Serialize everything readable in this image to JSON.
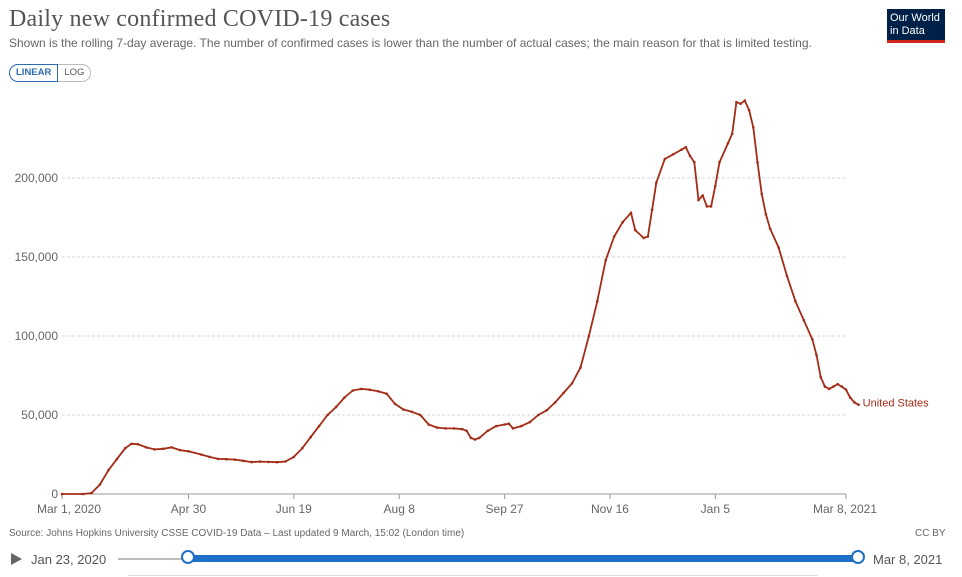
{
  "header": {
    "title": "Daily new confirmed COVID-19 cases",
    "subtitle": "Shown is the rolling 7-day average. The number of confirmed cases is lower than the number of actual cases; the main reason for that is limited testing.",
    "logo_line1": "Our World",
    "logo_line2": "in Data"
  },
  "scale_toggle": {
    "linear": "LINEAR",
    "log": "LOG",
    "selected": "LINEAR"
  },
  "footer": {
    "source": "Source: Johns Hopkins University CSSE COVID-19 Data – Last updated 9 March, 15:02 (London time)",
    "license": "CC BY"
  },
  "timeline": {
    "start": "Jan 23, 2020",
    "end": "Mar 8, 2021"
  },
  "colors": {
    "line": "#a32c17",
    "accent": "#1f6fc6",
    "logo_bg": "#002147",
    "logo_bar": "#ce261e"
  },
  "chart_data": {
    "type": "line",
    "title": "Daily new confirmed COVID-19 cases",
    "xlabel": "",
    "ylabel": "",
    "ylim": [
      0,
      250000
    ],
    "x_range_days": [
      0,
      372
    ],
    "y_ticks": [
      0,
      50000,
      100000,
      150000,
      200000
    ],
    "y_tick_labels": [
      "0",
      "50,000",
      "100,000",
      "150,000",
      "200,000"
    ],
    "x_ticks": [
      {
        "day": 0,
        "label": "Mar 1, 2020"
      },
      {
        "day": 60,
        "label": "Apr 30"
      },
      {
        "day": 110,
        "label": "Jun 19"
      },
      {
        "day": 160,
        "label": "Aug 8"
      },
      {
        "day": 210,
        "label": "Sep 27"
      },
      {
        "day": 260,
        "label": "Nov 16"
      },
      {
        "day": 310,
        "label": "Jan 5"
      },
      {
        "day": 372,
        "label": "Mar 8, 2021"
      }
    ],
    "grid": true,
    "series": [
      {
        "name": "United States",
        "points": [
          [
            0,
            0
          ],
          [
            10,
            0
          ],
          [
            14,
            600
          ],
          [
            18,
            6000
          ],
          [
            22,
            15000
          ],
          [
            26,
            22000
          ],
          [
            30,
            29000
          ],
          [
            33,
            31800
          ],
          [
            36,
            31500
          ],
          [
            40,
            29500
          ],
          [
            44,
            28200
          ],
          [
            48,
            28600
          ],
          [
            52,
            29500
          ],
          [
            56,
            27800
          ],
          [
            60,
            27000
          ],
          [
            66,
            25000
          ],
          [
            70,
            23500
          ],
          [
            74,
            22200
          ],
          [
            78,
            22000
          ],
          [
            82,
            21800
          ],
          [
            86,
            21000
          ],
          [
            90,
            20200
          ],
          [
            94,
            20500
          ],
          [
            98,
            20300
          ],
          [
            102,
            20100
          ],
          [
            106,
            20600
          ],
          [
            110,
            23500
          ],
          [
            114,
            29000
          ],
          [
            118,
            36000
          ],
          [
            122,
            43000
          ],
          [
            126,
            50000
          ],
          [
            130,
            55000
          ],
          [
            134,
            61000
          ],
          [
            138,
            65500
          ],
          [
            142,
            66500
          ],
          [
            146,
            66000
          ],
          [
            150,
            65000
          ],
          [
            154,
            63500
          ],
          [
            158,
            57000
          ],
          [
            162,
            53500
          ],
          [
            166,
            52000
          ],
          [
            170,
            50000
          ],
          [
            174,
            44000
          ],
          [
            178,
            42000
          ],
          [
            182,
            41500
          ],
          [
            186,
            41500
          ],
          [
            190,
            41000
          ],
          [
            192,
            40000
          ],
          [
            194,
            35500
          ],
          [
            196,
            34500
          ],
          [
            198,
            35500
          ],
          [
            202,
            40000
          ],
          [
            206,
            43000
          ],
          [
            210,
            44000
          ],
          [
            212,
            44500
          ],
          [
            214,
            41500
          ],
          [
            218,
            43000
          ],
          [
            222,
            45500
          ],
          [
            226,
            50000
          ],
          [
            230,
            53000
          ],
          [
            234,
            58000
          ],
          [
            238,
            64000
          ],
          [
            242,
            70000
          ],
          [
            246,
            80000
          ],
          [
            250,
            100000
          ],
          [
            254,
            122000
          ],
          [
            258,
            148000
          ],
          [
            262,
            163000
          ],
          [
            266,
            172000
          ],
          [
            270,
            178000
          ],
          [
            272,
            167000
          ],
          [
            276,
            162000
          ],
          [
            278,
            163000
          ],
          [
            280,
            180000
          ],
          [
            282,
            197000
          ],
          [
            286,
            212000
          ],
          [
            290,
            215000
          ],
          [
            294,
            218000
          ],
          [
            296,
            219500
          ],
          [
            298,
            214000
          ],
          [
            300,
            210000
          ],
          [
            302,
            186000
          ],
          [
            304,
            189000
          ],
          [
            306,
            182000
          ],
          [
            308,
            182000
          ],
          [
            310,
            195000
          ],
          [
            312,
            210000
          ],
          [
            316,
            222000
          ],
          [
            318,
            228000
          ],
          [
            320,
            248000
          ],
          [
            322,
            247000
          ],
          [
            324,
            249000
          ],
          [
            326,
            243000
          ],
          [
            328,
            232000
          ],
          [
            330,
            210000
          ],
          [
            332,
            190000
          ],
          [
            334,
            177000
          ],
          [
            336,
            168000
          ],
          [
            340,
            156000
          ],
          [
            344,
            138000
          ],
          [
            348,
            122000
          ],
          [
            352,
            110000
          ],
          [
            356,
            98000
          ],
          [
            358,
            88000
          ],
          [
            360,
            74000
          ],
          [
            362,
            68000
          ],
          [
            364,
            66500
          ],
          [
            366,
            68000
          ],
          [
            368,
            69500
          ],
          [
            370,
            68000
          ],
          [
            372,
            66000
          ],
          [
            374,
            61000
          ],
          [
            376,
            58000
          ],
          [
            378,
            56500
          ]
        ],
        "end_label": "United States"
      }
    ]
  }
}
